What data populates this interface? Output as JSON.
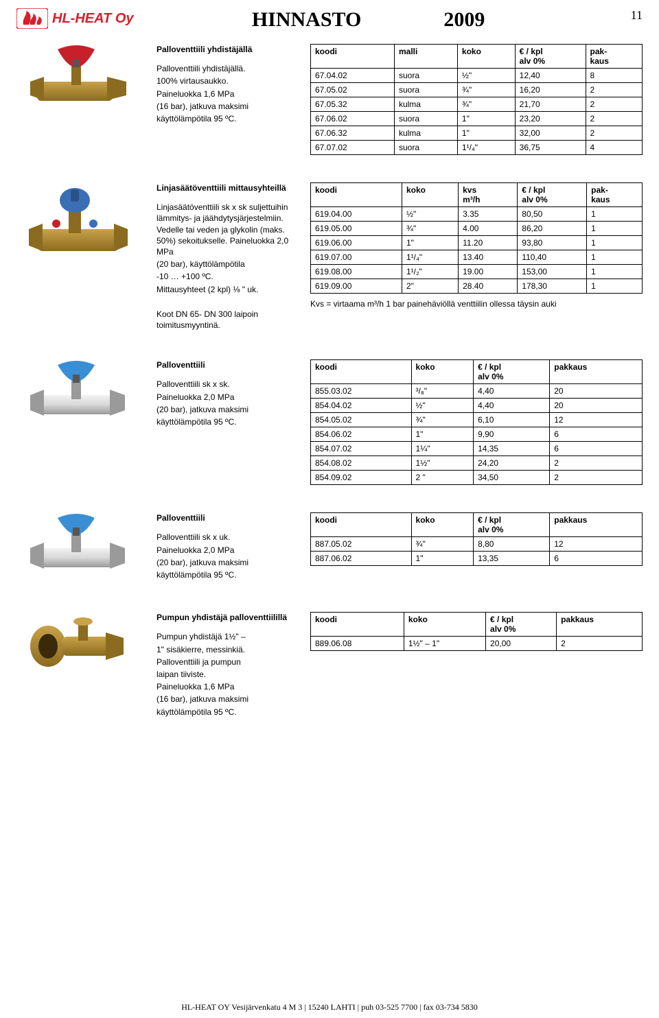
{
  "header": {
    "logo_text": "HL-HEAT Oy",
    "title": "HINNASTO",
    "year": "2009",
    "page_number": "11"
  },
  "footer": "HL-HEAT OY Vesijärvenkatu 4 M 3 | 15240 LAHTI | puh 03-525 7700 | fax 03-734 5830",
  "sections": [
    {
      "title": "Palloventtiili yhdistäjällä",
      "desc": [
        "Palloventtiili yhdistäjällä.",
        "100% virtausaukko.",
        "Paineluokka 1,6 MPa",
        "(16 bar), jatkuva maksimi",
        "käyttölämpötila 95 ºC."
      ],
      "image": "red-valve",
      "columns": [
        "koodi",
        "malli",
        "koko",
        "€ / kpl\nalv 0%",
        "pak-\nkaus"
      ],
      "rows": [
        [
          "67.04.02",
          "suora",
          "½\"",
          "12,40",
          "8"
        ],
        [
          "67.05.02",
          "suora",
          "¾\"",
          "16,20",
          "2"
        ],
        [
          "67.05.32",
          "kulma",
          "¾\"",
          "21,70",
          "2"
        ],
        [
          "67.06.02",
          "suora",
          "1\"",
          "23,20",
          "2"
        ],
        [
          "67.06.32",
          "kulma",
          "1\"",
          "32,00",
          "2"
        ],
        [
          "67.07.02",
          "suora",
          "1¹/₄\"",
          "36,75",
          "4"
        ]
      ]
    },
    {
      "title": "Linjasäätöventtiili mittausyhteillä",
      "desc": [
        "Linjasäätöventtiili sk x sk suljettuihin lämmitys- ja jäähdytysjärjestelmiin. Vedelle tai veden ja glykolin (maks. 50%) sekoitukselle. Paineluokka 2,0 MPa",
        "(20 bar), käyttölämpötila",
        "-10 … +100 ºC.",
        "Mittausyhteet (2 kpl) ⅛ \" uk.",
        "",
        "Koot DN 65- DN 300 laipoin toimitusmyyntinä."
      ],
      "image": "regulate-valve",
      "columns": [
        "koodi",
        "koko",
        "kvs\nm³/h",
        "€ / kpl\nalv 0%",
        "pak-\nkaus"
      ],
      "rows": [
        [
          "619.04.00",
          "½\"",
          "3.35",
          "80,50",
          "1"
        ],
        [
          "619.05.00",
          "¾\"",
          "4.00",
          "86,20",
          "1"
        ],
        [
          "619.06.00",
          "1\"",
          "11.20",
          "93,80",
          "1"
        ],
        [
          "619.07.00",
          "1¹/₄\"",
          "13.40",
          "110,40",
          "1"
        ],
        [
          "619.08.00",
          "1¹/₂\"",
          "19.00",
          "153,00",
          "1"
        ],
        [
          "619.09.00",
          "2\"",
          "28.40",
          "178,30",
          "1"
        ]
      ],
      "note": "Kvs = virtaama m³/h 1 bar painehäviöllä venttiilin ollessa täysin auki"
    },
    {
      "title": "Palloventtiili",
      "desc": [
        "Palloventtiili sk x sk.",
        "Paineluokka 2,0 MPa",
        "(20 bar), jatkuva maksimi",
        "käyttölämpötila 95 ºC."
      ],
      "image": "chrome-valve",
      "columns": [
        "koodi",
        "koko",
        "€ / kpl\nalv 0%",
        "pakkaus"
      ],
      "rows": [
        [
          "855.03.02",
          "³/₈\"",
          "4,40",
          "20"
        ],
        [
          "854.04.02",
          "½\"",
          "4,40",
          "20"
        ],
        [
          "854.05.02",
          "¾\"",
          "6,10",
          "12"
        ],
        [
          "854.06.02",
          "1\"",
          "9,90",
          "6"
        ],
        [
          "854.07.02",
          "1¼\"",
          "14,35",
          "6"
        ],
        [
          "854.08.02",
          "1½\"",
          "24,20",
          "2"
        ],
        [
          "854.09.02",
          "2 \"",
          "34,50",
          "2"
        ]
      ]
    },
    {
      "title": "Palloventtiili",
      "desc": [
        "Palloventtiili sk x uk.",
        "Paineluokka 2,0 MPa",
        "(20 bar), jatkuva maksimi",
        "käyttölämpötila 95 ºC."
      ],
      "image": "chrome-valve-2",
      "columns": [
        "koodi",
        "koko",
        "€ / kpl\nalv 0%",
        "pakkaus"
      ],
      "rows": [
        [
          "887.05.02",
          "¾\"",
          "8,80",
          "12"
        ],
        [
          "887.06.02",
          "1\"",
          "13,35",
          "6"
        ]
      ]
    },
    {
      "title": "Pumpun yhdistäjä palloventtiilillä",
      "desc": [
        "Pumpun yhdistäjä 1½\" –",
        "1\" sisäkierre, messinkiä.",
        "Palloventtiili ja pumpun",
        "laipan tiiviste.",
        "Paineluokka 1,6 MPa",
        "(16 bar), jatkuva maksimi",
        "käyttölämpötila 95 ºC."
      ],
      "image": "brass-valve",
      "columns": [
        "koodi",
        "koko",
        "€ / kpl\nalv 0%",
        "pakkaus"
      ],
      "rows": [
        [
          "889.06.08",
          "1½\" – 1\"",
          "20,00",
          "2"
        ]
      ]
    }
  ],
  "colors": {
    "logo_red": "#d81e2c",
    "border": "#000000",
    "brass": "#c9a24a",
    "brass_dark": "#8a6b1f",
    "chrome": "#d8d8d8",
    "chrome_dark": "#9a9a9a",
    "handle_red": "#c8202a",
    "handle_blue": "#3a8fd4",
    "regulate_blue": "#3b6fb5"
  }
}
